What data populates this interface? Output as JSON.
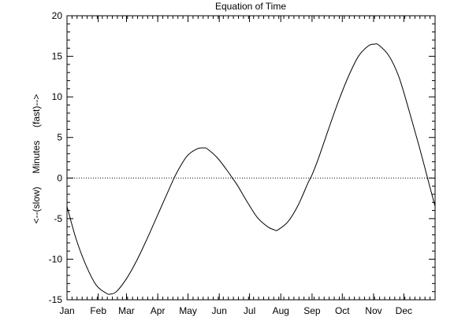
{
  "chart_data": {
    "type": "line",
    "title": "Equation of Time",
    "ylabel": "<--(slow)     Minutes     (fast)-->",
    "xlabel": "",
    "ylim": [
      -15,
      20
    ],
    "yticks": [
      -15,
      -10,
      -5,
      0,
      5,
      10,
      15,
      20
    ],
    "xlim": [
      1,
      366
    ],
    "categories": [
      "Jan",
      "Feb",
      "Mar",
      "Apr",
      "May",
      "Jun",
      "Jul",
      "Aug",
      "Sep",
      "Oct",
      "Nov",
      "Dec"
    ],
    "category_days": [
      1,
      32,
      60,
      91,
      121,
      152,
      182,
      213,
      244,
      274,
      305,
      335
    ],
    "reference_line": {
      "y": 0,
      "style": "dotted"
    },
    "series": [
      {
        "x": [
          1,
          10,
          20,
          30,
          40,
          44,
          50,
          60,
          70,
          80,
          90,
          100,
          105,
          110,
          120,
          130,
          137,
          140,
          150,
          160,
          165,
          170,
          180,
          190,
          200,
          207,
          210,
          220,
          230,
          240,
          244,
          250,
          260,
          270,
          280,
          290,
          300,
          306,
          310,
          320,
          330,
          340,
          350,
          360,
          366
        ],
        "y": [
          -3.5,
          -7.5,
          -10.8,
          -13.2,
          -14.2,
          -14.3,
          -14.0,
          -12.4,
          -10.2,
          -7.6,
          -4.8,
          -2.0,
          -0.6,
          0.7,
          2.7,
          3.6,
          3.7,
          3.6,
          2.5,
          0.9,
          0.0,
          -0.9,
          -3.0,
          -4.9,
          -6.0,
          -6.4,
          -6.4,
          -5.4,
          -3.4,
          -0.6,
          0.4,
          2.3,
          5.9,
          9.4,
          12.5,
          15.0,
          16.3,
          16.5,
          16.4,
          15.1,
          12.5,
          8.4,
          4.0,
          -0.7,
          -3.5
        ]
      }
    ]
  }
}
